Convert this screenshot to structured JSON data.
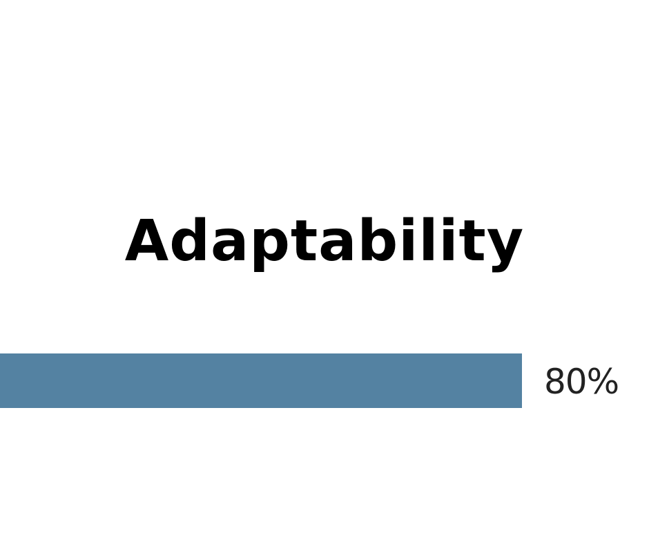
{
  "chart_data": {
    "type": "bar",
    "title": "Adaptability",
    "categories": [
      "Adaptability"
    ],
    "values": [
      80
    ],
    "value_label": "80%",
    "unit": "%",
    "xlim": [
      0,
      100
    ],
    "bar_color": "#5482a2"
  }
}
